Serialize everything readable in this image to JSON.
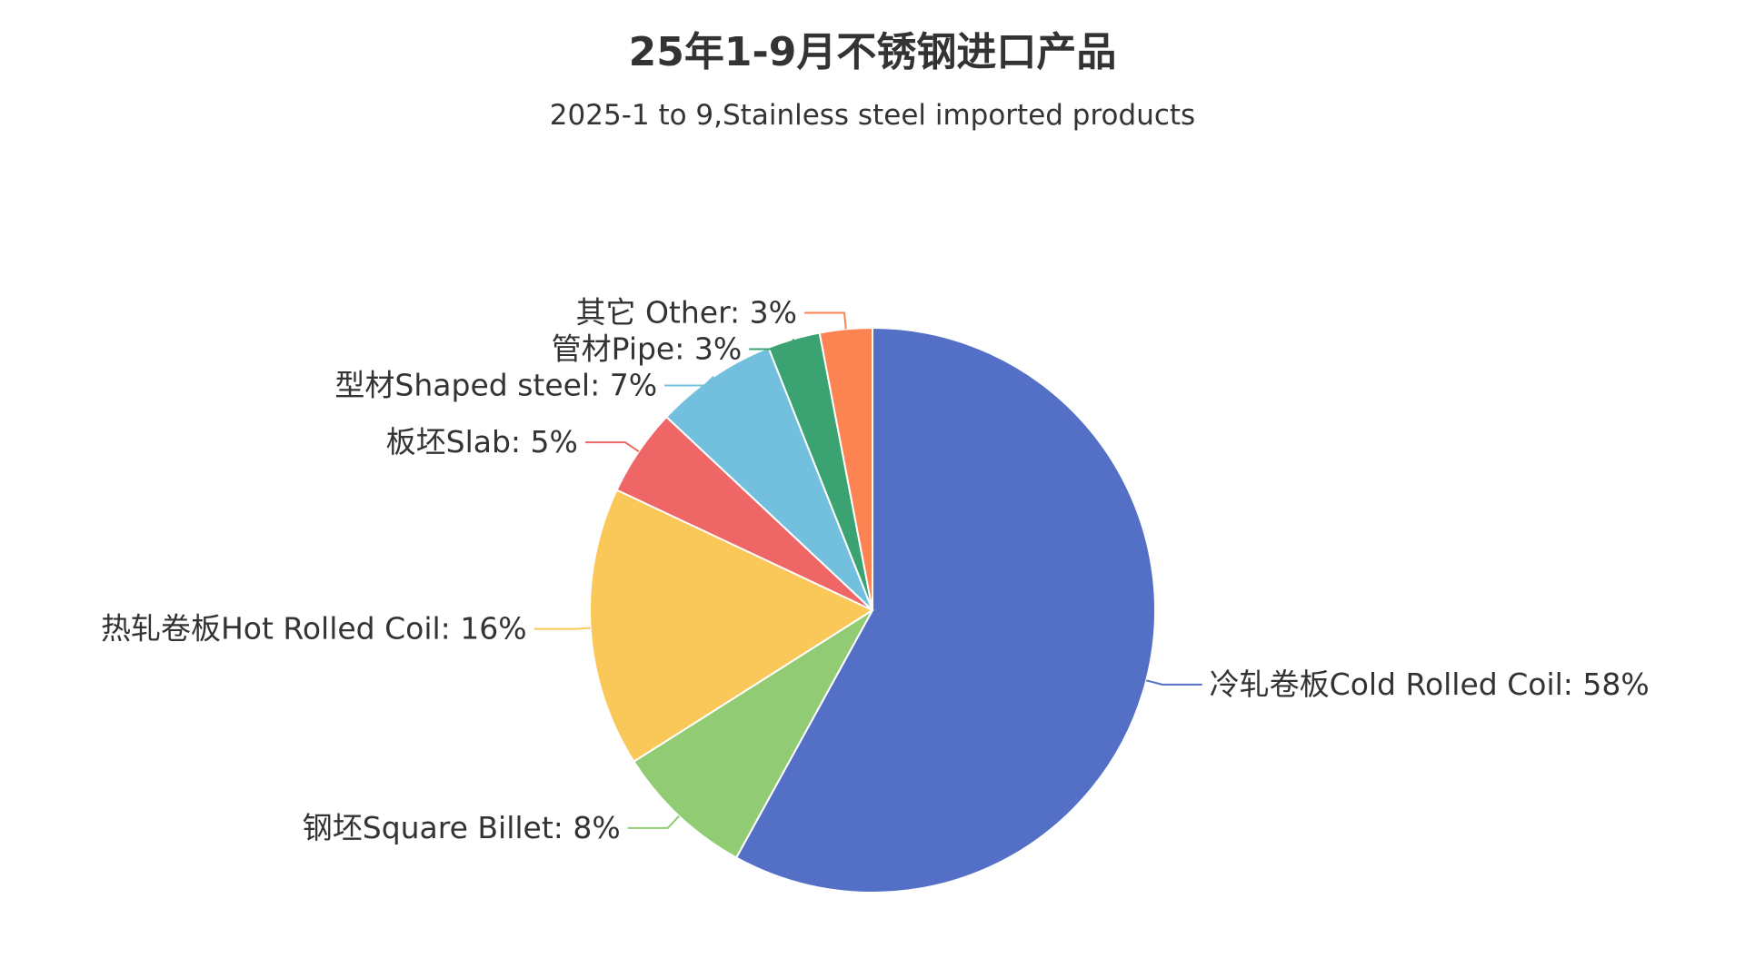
{
  "chart_data": {
    "type": "pie",
    "title": "25年1-9月不锈钢进口产品",
    "subtitle": "2025-1 to 9,Stainless steel imported products",
    "slices": [
      {
        "label": "冷轧卷板Cold Rolled Coil",
        "value": 58,
        "color": "#5470c6"
      },
      {
        "label": "钢坯Square Billet",
        "value": 8,
        "color": "#91cc75"
      },
      {
        "label": "热轧卷板Hot Rolled Coil",
        "value": 16,
        "color": "#fac858"
      },
      {
        "label": "板坯Slab",
        "value": 5,
        "color": "#ee6666"
      },
      {
        "label": "型材Shaped steel",
        "value": 7,
        "color": "#73c0de"
      },
      {
        "label": "管材Pipe",
        "value": 3,
        "color": "#3ba272"
      },
      {
        "label": "其它 Other",
        "value": 3,
        "color": "#fc8452"
      }
    ],
    "label_format": "{label}: {value}%",
    "start_angle": "top",
    "direction": "clockwise",
    "legend": "none"
  }
}
